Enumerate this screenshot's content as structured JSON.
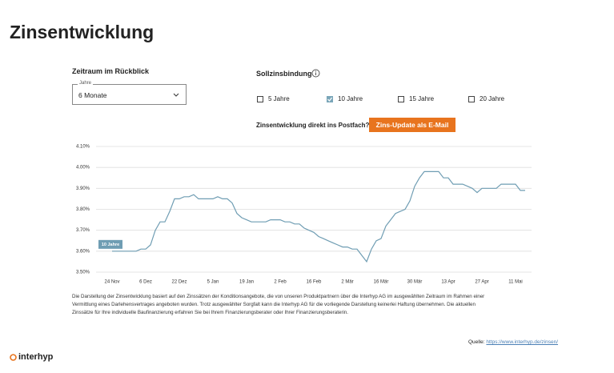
{
  "page_title": "Zinsentwicklung",
  "filters": {
    "zeitraum_label": "Zeitraum im Rückblick",
    "select_label": "Jahre",
    "select_value": "6 Monate",
    "zinsbindung_label": "Sollzinsbindung",
    "options": [
      {
        "label": "5 Jahre",
        "checked": false
      },
      {
        "label": "10 Jahre",
        "checked": true
      },
      {
        "label": "15 Jahre",
        "checked": false
      },
      {
        "label": "20 Jahre",
        "checked": false
      }
    ]
  },
  "newsletter": {
    "text": "Zinsentwicklung direkt ins Postfach?",
    "button": "Zins-Update als E-Mail"
  },
  "chart_data": {
    "type": "line",
    "categories": [
      "24 Nov",
      null,
      null,
      null,
      null,
      null,
      null,
      "6 Dez",
      null,
      null,
      null,
      null,
      null,
      null,
      "22 Dez",
      null,
      null,
      null,
      null,
      null,
      null,
      "5 Jan",
      null,
      null,
      null,
      null,
      null,
      null,
      "19 Jan",
      null,
      null,
      null,
      null,
      null,
      null,
      "2 Feb",
      null,
      null,
      null,
      null,
      null,
      null,
      "16 Feb",
      null,
      null,
      null,
      null,
      null,
      null,
      "2 Mär",
      null,
      null,
      null,
      null,
      null,
      null,
      "16 Mär",
      null,
      null,
      null,
      null,
      null,
      null,
      "30 Mär",
      null,
      null,
      null,
      null,
      null,
      null,
      "13 Apr",
      null,
      null,
      null,
      null,
      null,
      null,
      "27 Apr",
      null,
      null,
      null,
      null,
      null,
      null,
      "11 Mai",
      null,
      null
    ],
    "series": [
      {
        "name": "10 Jahre",
        "color": "#6f9db3",
        "values": [
          3.6,
          3.6,
          3.6,
          3.6,
          3.6,
          3.6,
          3.61,
          3.61,
          3.63,
          3.7,
          3.74,
          3.74,
          3.79,
          3.85,
          3.85,
          3.86,
          3.86,
          3.87,
          3.85,
          3.85,
          3.85,
          3.85,
          3.86,
          3.85,
          3.85,
          3.83,
          3.78,
          3.76,
          3.75,
          3.74,
          3.74,
          3.74,
          3.74,
          3.75,
          3.75,
          3.75,
          3.74,
          3.74,
          3.73,
          3.73,
          3.71,
          3.7,
          3.69,
          3.67,
          3.66,
          3.65,
          3.64,
          3.63,
          3.62,
          3.62,
          3.61,
          3.61,
          3.58,
          3.55,
          3.61,
          3.65,
          3.66,
          3.72,
          3.75,
          3.78,
          3.79,
          3.8,
          3.84,
          3.91,
          3.95,
          3.98,
          3.98,
          3.98,
          3.98,
          3.95,
          3.95,
          3.92,
          3.92,
          3.92,
          3.91,
          3.9,
          3.88,
          3.9,
          3.9,
          3.9,
          3.9,
          3.92,
          3.92,
          3.92,
          3.92,
          3.89,
          3.89
        ]
      }
    ],
    "ylim": [
      3.5,
      4.1
    ],
    "yticks": [
      {
        "value": 3.5,
        "label": "3.50%"
      },
      {
        "value": 3.6,
        "label": "3.60%"
      },
      {
        "value": 3.7,
        "label": "3.70%"
      },
      {
        "value": 3.8,
        "label": "3.80%"
      },
      {
        "value": 3.9,
        "label": "3.90%"
      },
      {
        "value": 4.0,
        "label": "4.00%"
      },
      {
        "value": 4.1,
        "label": "4.10%"
      }
    ],
    "grid": true
  },
  "disclaimer": [
    "Die Darstellung der Zinsentwicklung basiert auf den Zinssätzen der Konditionsangebote, die von unseren Produktpartnern über die Interhyp AG im ausgewählten Zeitraum im Rahmen einer",
    "Vermittlung eines Darlehensvertrages angeboten wurden. Trotz ausgewählter Sorgfalt kann die Interhyp AG für die vorliegende Darstellung keinerlei Haftung übernehmen. Die aktuellen",
    "Zinssätze für Ihre individuelle Baufinanzierung erfahren Sie bei Ihrem Finanzierungsberater oder Ihrer Finanzierungsberaterin."
  ],
  "source": {
    "label": "Quelle:",
    "url": "https://www.interhyp.de/zinsen/"
  },
  "logo": "interhyp"
}
